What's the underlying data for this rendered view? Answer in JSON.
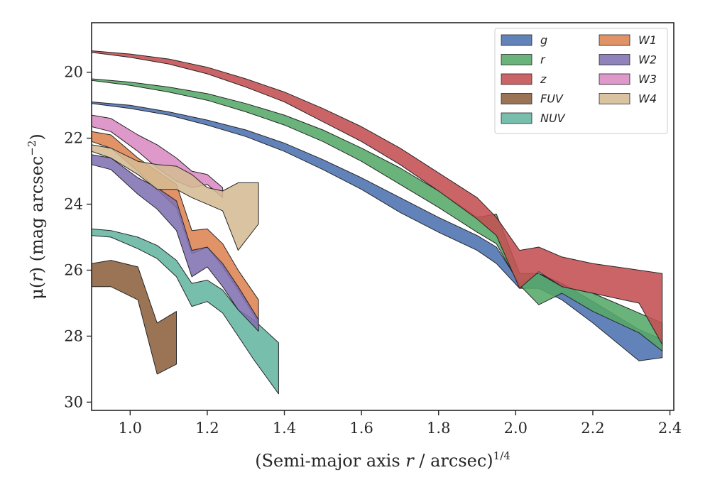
{
  "chart_data": {
    "type": "area",
    "xlabel_parts": [
      "(Semi-major axis ",
      "r",
      " / arcsec)",
      "1/4"
    ],
    "ylabel_parts": [
      "μ(",
      "r",
      ") (mag arcsec",
      "−2",
      ")"
    ],
    "xlim": [
      0.9,
      2.41
    ],
    "ylim": [
      30.25,
      18.5
    ],
    "y_inverted": true,
    "xticks": [
      1.0,
      1.2,
      1.4,
      1.6,
      1.8,
      2.0,
      2.2,
      2.4
    ],
    "xtick_labels": [
      "1.0",
      "1.2",
      "1.4",
      "1.6",
      "1.8",
      "2.0",
      "2.2",
      "2.4"
    ],
    "yticks": [
      20,
      22,
      24,
      26,
      28,
      30
    ],
    "ytick_labels": [
      "20",
      "22",
      "24",
      "26",
      "28",
      "30"
    ],
    "grid": false,
    "legend_position": "top-right",
    "legend_columns": 2,
    "series": [
      {
        "name": "g",
        "color": "#4c72b0",
        "x": [
          0.9,
          1.0,
          1.1,
          1.2,
          1.3,
          1.4,
          1.5,
          1.6,
          1.7,
          1.8,
          1.9,
          1.95,
          2.01,
          2.06,
          2.12,
          2.2,
          2.32,
          2.38
        ],
        "lo": [
          20.9,
          21.0,
          21.2,
          21.45,
          21.75,
          22.15,
          22.65,
          23.2,
          23.8,
          24.4,
          24.95,
          25.3,
          26.4,
          26.1,
          26.4,
          26.95,
          27.8,
          28.1
        ],
        "hi": [
          20.95,
          21.1,
          21.3,
          21.6,
          21.95,
          22.4,
          22.95,
          23.55,
          24.25,
          24.85,
          25.4,
          25.8,
          26.55,
          26.55,
          26.9,
          27.6,
          28.75,
          28.65
        ]
      },
      {
        "name": "r",
        "color": "#55a868",
        "x": [
          0.9,
          1.0,
          1.1,
          1.2,
          1.3,
          1.4,
          1.5,
          1.6,
          1.7,
          1.8,
          1.9,
          1.95,
          2.01,
          2.06,
          2.12,
          2.2,
          2.32,
          2.38
        ],
        "lo": [
          20.2,
          20.3,
          20.45,
          20.65,
          20.95,
          21.3,
          21.75,
          22.3,
          22.9,
          23.6,
          24.4,
          24.3,
          26.1,
          26.1,
          26.5,
          26.7,
          27.3,
          27.6
        ],
        "hi": [
          20.25,
          20.4,
          20.6,
          20.85,
          21.2,
          21.6,
          22.1,
          22.7,
          23.4,
          24.1,
          24.85,
          25.2,
          26.45,
          27.05,
          26.7,
          27.25,
          27.9,
          28.45
        ]
      },
      {
        "name": "z",
        "color": "#c44e52",
        "x": [
          0.9,
          1.0,
          1.1,
          1.2,
          1.3,
          1.4,
          1.5,
          1.6,
          1.7,
          1.8,
          1.9,
          1.95,
          2.01,
          2.06,
          2.12,
          2.2,
          2.32,
          2.38
        ],
        "lo": [
          19.35,
          19.45,
          19.6,
          19.85,
          20.2,
          20.6,
          21.1,
          21.65,
          22.3,
          23.05,
          23.8,
          24.4,
          25.4,
          25.3,
          25.6,
          25.8,
          26.0,
          26.1
        ],
        "hi": [
          19.4,
          19.55,
          19.75,
          20.05,
          20.45,
          20.9,
          21.5,
          22.1,
          22.8,
          23.6,
          24.45,
          24.95,
          26.55,
          26.05,
          26.5,
          26.7,
          27.0,
          28.25
        ]
      },
      {
        "name": "FUV",
        "color": "#8c613c",
        "x": [
          0.9,
          0.95,
          1.02,
          1.07,
          1.12
        ],
        "lo": [
          25.8,
          25.7,
          25.9,
          27.6,
          27.25
        ],
        "hi": [
          26.5,
          26.5,
          26.9,
          29.15,
          28.85
        ]
      },
      {
        "name": "NUV",
        "color": "#64b5a0",
        "x": [
          0.9,
          0.95,
          1.02,
          1.07,
          1.12,
          1.16,
          1.2,
          1.24,
          1.28,
          1.32,
          1.385
        ],
        "lo": [
          24.75,
          24.8,
          25.0,
          25.25,
          25.7,
          26.4,
          26.3,
          26.6,
          27.2,
          27.5,
          28.2
        ],
        "hi": [
          24.95,
          25.0,
          25.35,
          25.65,
          26.2,
          27.1,
          26.95,
          27.3,
          28.0,
          28.7,
          29.75
        ]
      },
      {
        "name": "W1",
        "color": "#dd8452",
        "x": [
          0.9,
          0.95,
          1.02,
          1.07,
          1.12,
          1.16,
          1.2,
          1.24,
          1.28,
          1.333
        ],
        "lo": [
          21.8,
          21.9,
          22.6,
          23.0,
          23.4,
          24.8,
          24.75,
          25.2,
          26.0,
          26.9
        ],
        "hi": [
          22.1,
          22.3,
          23.0,
          23.55,
          24.1,
          25.5,
          25.3,
          25.9,
          26.6,
          27.6
        ]
      },
      {
        "name": "W2",
        "color": "#8172b3",
        "x": [
          0.9,
          0.95,
          1.02,
          1.07,
          1.12,
          1.16,
          1.2,
          1.24,
          1.28,
          1.333
        ],
        "lo": [
          22.5,
          22.6,
          23.2,
          23.5,
          23.9,
          25.4,
          25.3,
          25.8,
          26.5,
          27.5
        ],
        "hi": [
          22.8,
          22.95,
          23.7,
          24.15,
          24.8,
          26.2,
          25.9,
          26.5,
          27.2,
          27.85
        ]
      },
      {
        "name": "W3",
        "color": "#da8bc3",
        "x": [
          0.9,
          0.95,
          1.02,
          1.07,
          1.12,
          1.16,
          1.2,
          1.24
        ],
        "lo": [
          21.3,
          21.4,
          21.9,
          22.2,
          22.6,
          23.0,
          23.1,
          23.5
        ],
        "hi": [
          21.65,
          21.8,
          22.4,
          22.9,
          23.3,
          23.5,
          23.4,
          23.8
        ]
      },
      {
        "name": "W4",
        "color": "#d5bb94",
        "x": [
          0.9,
          0.95,
          1.02,
          1.07,
          1.12,
          1.16,
          1.2,
          1.24,
          1.28,
          1.333
        ],
        "lo": [
          22.2,
          22.3,
          22.7,
          22.8,
          22.85,
          23.1,
          23.5,
          23.6,
          23.35,
          23.35
        ],
        "hi": [
          22.4,
          22.6,
          23.1,
          23.55,
          23.55,
          23.8,
          24.0,
          24.2,
          25.4,
          24.6
        ]
      }
    ]
  }
}
